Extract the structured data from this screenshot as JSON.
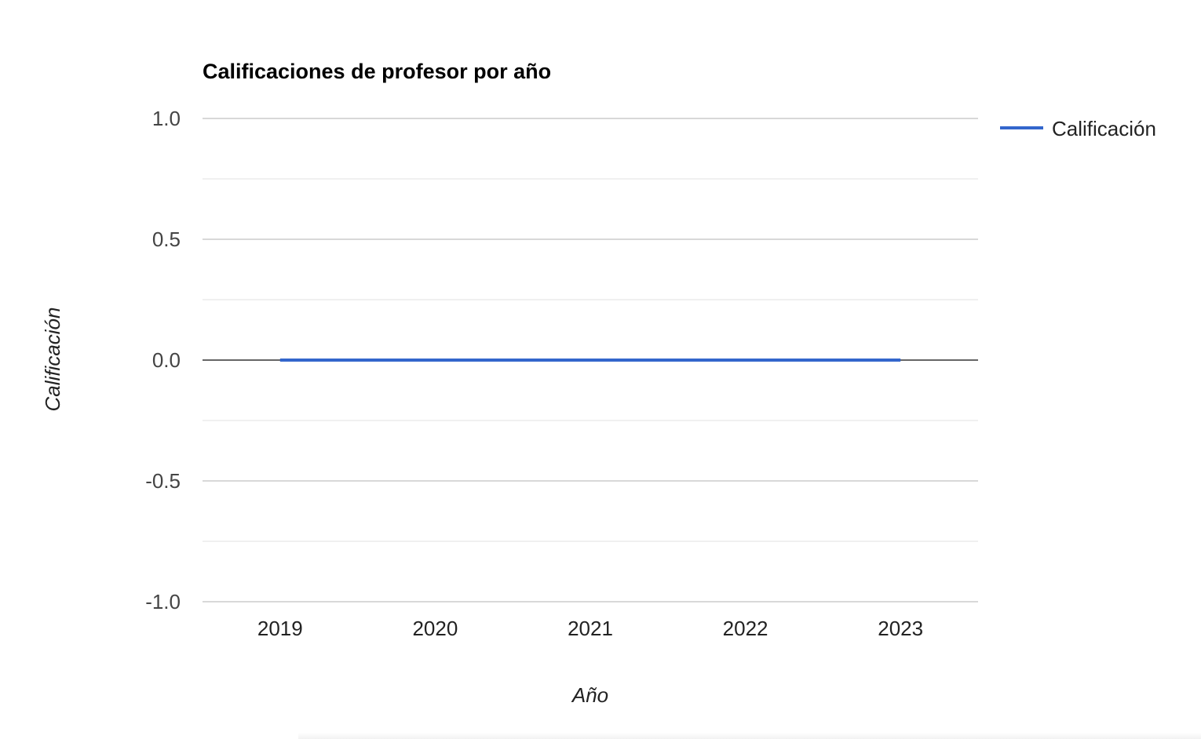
{
  "chart_data": {
    "type": "line",
    "title": "Calificaciones de profesor por año",
    "xlabel": "Año",
    "ylabel": "Calificación",
    "categories": [
      "2019",
      "2020",
      "2021",
      "2022",
      "2023"
    ],
    "series": [
      {
        "name": "Calificación",
        "values": [
          0,
          0,
          0,
          0,
          0
        ],
        "color": "#3366cc"
      }
    ],
    "ylim": [
      -1.0,
      1.0
    ],
    "y_ticks": [
      1.0,
      0.5,
      0.0,
      -0.5,
      -1.0
    ],
    "y_tick_labels": [
      "1.0",
      "0.5",
      "0.0",
      "-0.5",
      "-1.0"
    ],
    "legend_position": "right",
    "grid": true,
    "gridline_color": "#cccccc",
    "minor_gridline_color": "#ebebeb",
    "baseline_color": "#333333"
  }
}
